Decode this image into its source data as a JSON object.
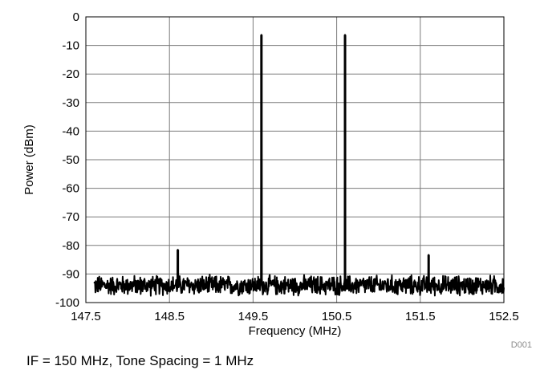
{
  "chart_data": {
    "type": "line",
    "xlabel": "Frequency (MHz)",
    "ylabel": "Power (dBm)",
    "xlim": [
      147.5,
      152.5
    ],
    "ylim": [
      -100,
      0
    ],
    "x_ticks": [
      "147.5",
      "148.5",
      "149.5",
      "150.5",
      "151.5",
      "152.5"
    ],
    "y_ticks": [
      "0",
      "-10",
      "-20",
      "-30",
      "-40",
      "-50",
      "-60",
      "-70",
      "-80",
      "-90",
      "-100"
    ],
    "grid": true,
    "legend": "none",
    "line_color": "#000000",
    "noise_floor_dbm": -94,
    "noise_floor_range": [
      -98,
      -90
    ],
    "series": [
      {
        "values": [
          {
            "x": 148.6,
            "y": -81.5
          },
          {
            "x": 149.6,
            "y": -6.3
          },
          {
            "x": 150.6,
            "y": -6.3
          },
          {
            "x": 151.6,
            "y": -83.3
          }
        ]
      }
    ]
  },
  "figure_id": "D001",
  "caption": "IF = 150 MHz, Tone Spacing = 1 MHz"
}
